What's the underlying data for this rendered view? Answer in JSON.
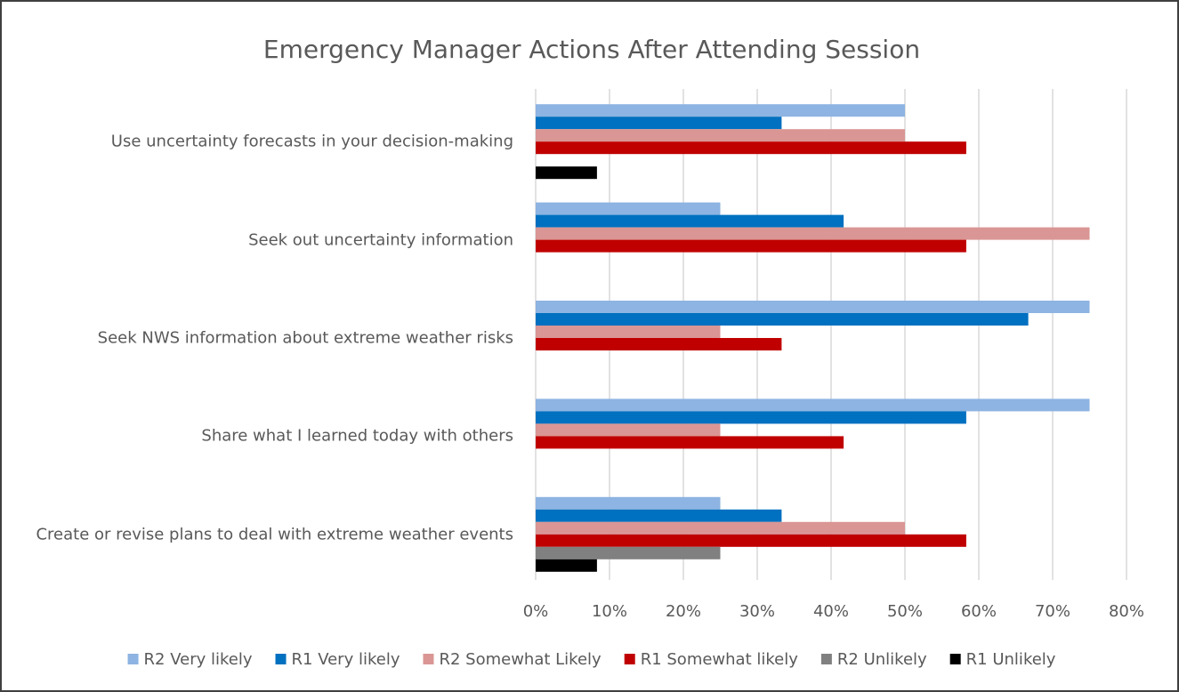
{
  "chart_data": {
    "type": "hbar",
    "title": "Emergency Manager Actions After Attending Session",
    "categories": [
      "Use uncertainty forecasts in your decision-making",
      "Seek out uncertainty information",
      "Seek NWS information about extreme weather risks",
      "Share what I learned today with others",
      "Create or revise plans to deal with extreme weather events"
    ],
    "series": [
      {
        "name": "R2 Very likely",
        "color": "#8db4e2",
        "values": [
          50,
          25,
          75,
          75,
          25
        ]
      },
      {
        "name": "R1 Very likely",
        "color": "#0070c0",
        "values": [
          33.3,
          41.7,
          66.7,
          58.3,
          33.3
        ]
      },
      {
        "name": "R2 Somewhat Likely",
        "color": "#da9694",
        "values": [
          50,
          75,
          25,
          25,
          50
        ]
      },
      {
        "name": "R1 Somewhat likely",
        "color": "#c00000",
        "values": [
          58.3,
          58.3,
          33.3,
          41.7,
          58.3
        ]
      },
      {
        "name": "R2 Unlikely",
        "color": "#808080",
        "values": [
          0,
          0,
          0,
          0,
          25
        ]
      },
      {
        "name": "R1 Unlikely",
        "color": "#000000",
        "values": [
          8.3,
          0,
          0,
          0,
          8.3
        ]
      }
    ],
    "xlim": [
      0,
      80
    ],
    "xticks": [
      {
        "value": 0,
        "label": "0%"
      },
      {
        "value": 10,
        "label": "10%"
      },
      {
        "value": 20,
        "label": "20%"
      },
      {
        "value": 30,
        "label": "30%"
      },
      {
        "value": 40,
        "label": "40%"
      },
      {
        "value": 50,
        "label": "50%"
      },
      {
        "value": 60,
        "label": "60%"
      },
      {
        "value": 70,
        "label": "70%"
      },
      {
        "value": 80,
        "label": "80%"
      }
    ],
    "grid": true,
    "legend": "bottom"
  }
}
